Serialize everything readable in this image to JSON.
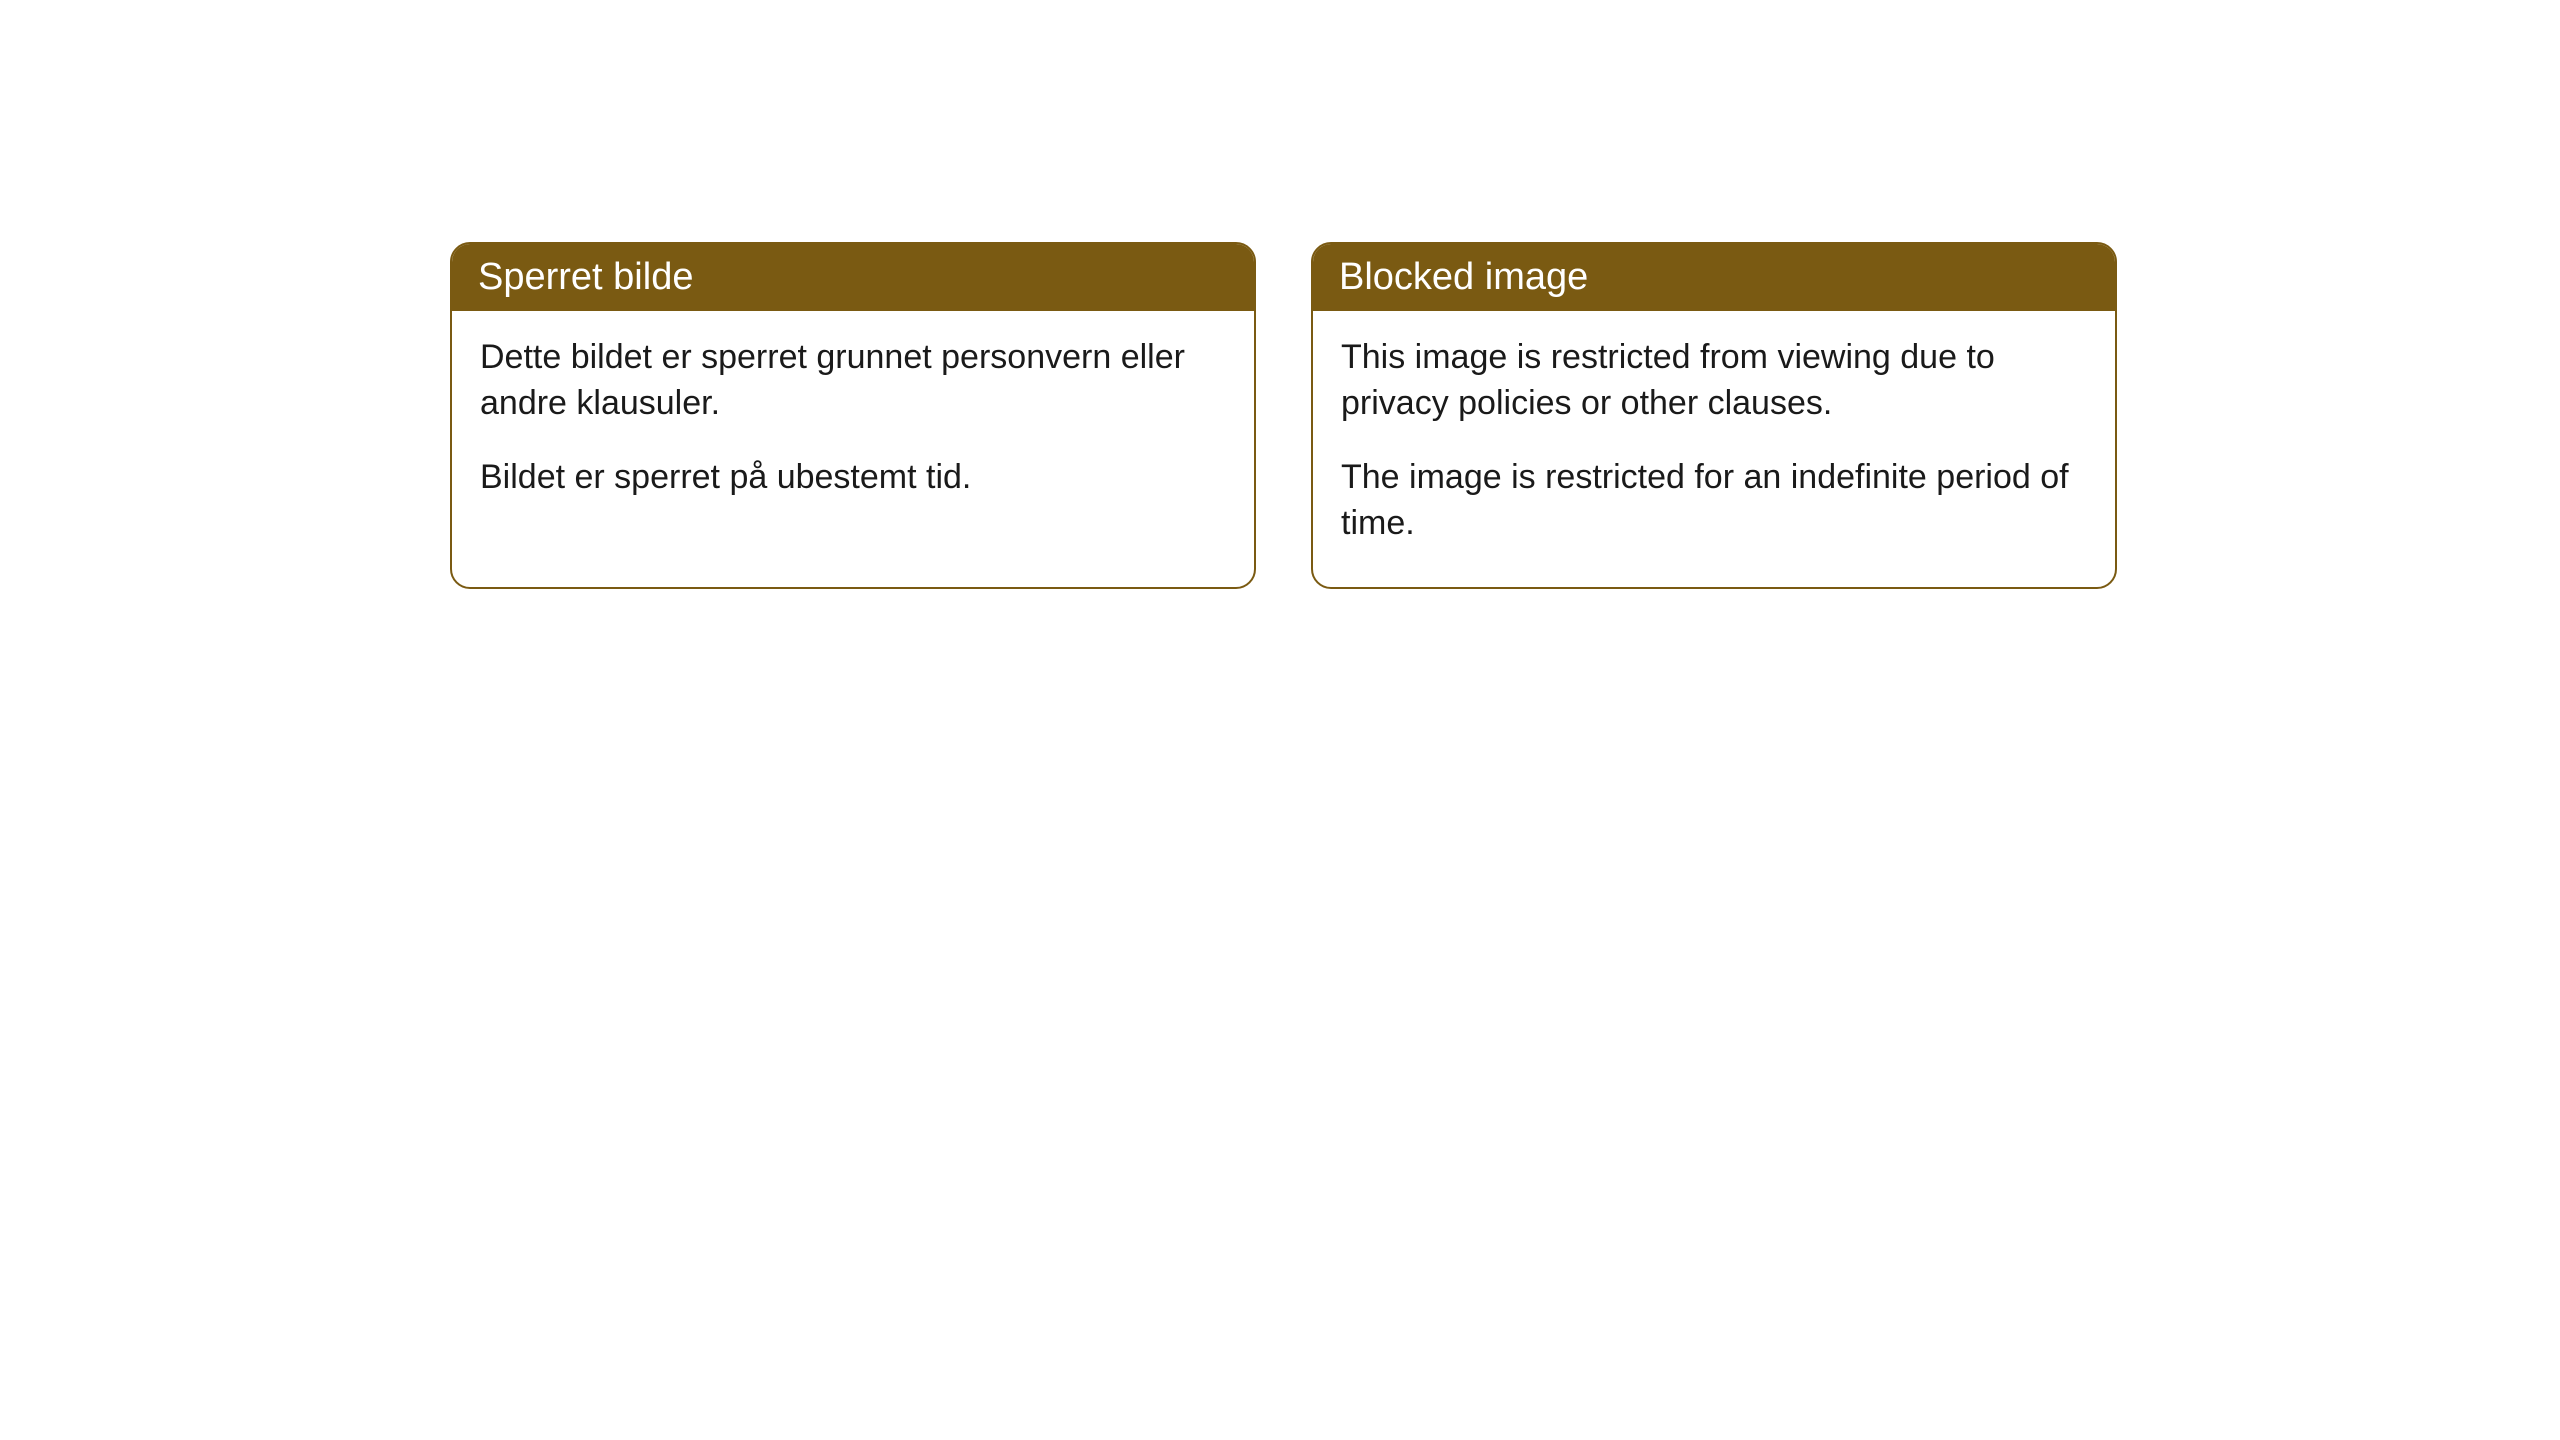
{
  "cards": [
    {
      "title": "Sperret bilde",
      "paragraph1": "Dette bildet er sperret grunnet personvern eller andre klausuler.",
      "paragraph2": "Bildet er sperret på ubestemt tid."
    },
    {
      "title": "Blocked image",
      "paragraph1": "This image is restricted from viewing due to privacy policies or other clauses.",
      "paragraph2": "The image is restricted for an indefinite period of time."
    }
  ],
  "styling": {
    "header_bg_color": "#7a5a12",
    "header_text_color": "#ffffff",
    "card_border_color": "#7a5a12",
    "card_bg_color": "#ffffff",
    "body_text_color": "#1a1a1a",
    "page_bg_color": "#ffffff",
    "border_radius": 20,
    "title_fontsize": 38,
    "body_fontsize": 34
  }
}
